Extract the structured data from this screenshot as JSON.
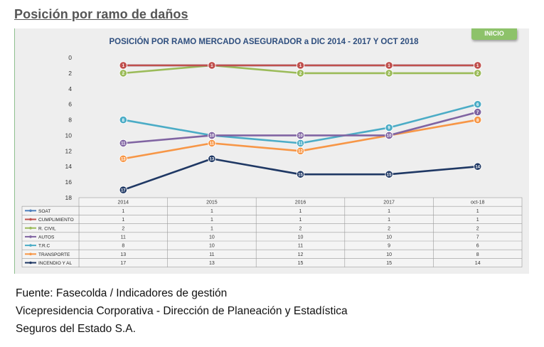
{
  "heading": "Posición por ramo de daños",
  "inicio_label": "INICIO",
  "footer": [
    "Fuente: Fasecolda / Indicadores de gestión",
    "Vicepresidencia Corporativa - Dirección de Planeación y Estadística",
    "Seguros del Estado S.A."
  ],
  "chart_data": {
    "type": "line",
    "title": "POSICIÓN POR RAMO MERCADO ASEGURADOR a DIC 2014 - 2017 Y OCT 2018",
    "categories": [
      "2014",
      "2015",
      "2016",
      "2017",
      "oct-18"
    ],
    "y_axis": {
      "reversed": true,
      "ylim": [
        0,
        18
      ],
      "ticks": [
        0,
        2,
        4,
        6,
        8,
        10,
        12,
        14,
        16,
        18
      ]
    },
    "grid": false,
    "legend": "data-table",
    "series": [
      {
        "name": "SOAT",
        "color": "#4f81bd",
        "values": [
          1,
          1,
          1,
          1,
          1
        ]
      },
      {
        "name": "CUMPLIMIENTO",
        "color": "#c0504d",
        "values": [
          1,
          1,
          1,
          1,
          1
        ]
      },
      {
        "name": "R. CIVIL",
        "color": "#9bbb59",
        "values": [
          2,
          1,
          2,
          2,
          2
        ]
      },
      {
        "name": "AUTOS",
        "color": "#8064a2",
        "values": [
          11,
          10,
          10,
          10,
          7
        ]
      },
      {
        "name": "T.R.C",
        "color": "#4bacc6",
        "values": [
          8,
          10,
          11,
          9,
          6
        ]
      },
      {
        "name": "TRANSPORTE",
        "color": "#f79646",
        "values": [
          13,
          11,
          12,
          10,
          8
        ]
      },
      {
        "name": "INCENDIO Y AL",
        "color": "#1f3864",
        "values": [
          17,
          13,
          15,
          15,
          14
        ]
      }
    ]
  }
}
